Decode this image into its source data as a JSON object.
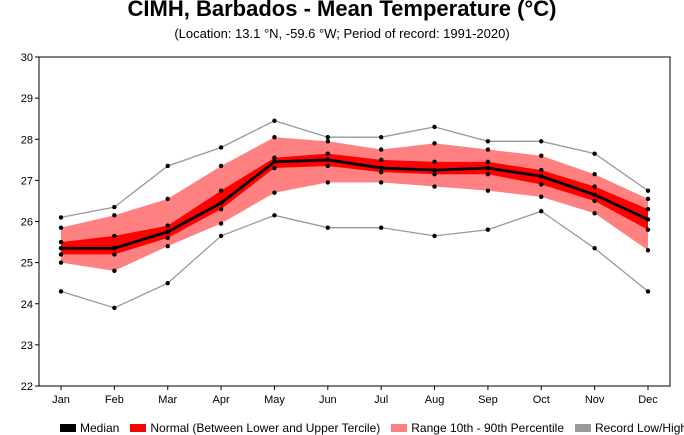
{
  "chart_data": {
    "type": "line",
    "title": "CIMH, Barbados - Mean Temperature (°C)",
    "subtitle": "(Location: 13.1 °N, -59.6 °W; Period of record: 1991-2020)",
    "categories": [
      "Jan",
      "Feb",
      "Mar",
      "Apr",
      "May",
      "Jun",
      "Jul",
      "Aug",
      "Sep",
      "Oct",
      "Nov",
      "Dec"
    ],
    "ylim": [
      22,
      30
    ],
    "yticks": [
      22,
      23,
      24,
      25,
      26,
      27,
      28,
      29,
      30
    ],
    "series": [
      {
        "name": "Median",
        "color": "#000000",
        "values": [
          25.35,
          25.35,
          25.75,
          26.45,
          27.45,
          27.5,
          27.3,
          27.25,
          27.3,
          27.1,
          26.65,
          26.05
        ]
      },
      {
        "name": "Normal (Between Lower and Upper Tercile)",
        "color": "#ff0000",
        "lower": [
          25.2,
          25.2,
          25.6,
          26.3,
          27.3,
          27.35,
          27.2,
          27.15,
          27.15,
          26.9,
          26.5,
          25.8
        ],
        "upper": [
          25.5,
          25.65,
          25.9,
          26.75,
          27.55,
          27.65,
          27.5,
          27.45,
          27.45,
          27.25,
          26.85,
          26.3
        ]
      },
      {
        "name": "Range 10th - 90th Percentile",
        "color": "#ff8080",
        "lower": [
          25.0,
          24.8,
          25.4,
          25.95,
          26.7,
          26.95,
          26.95,
          26.85,
          26.75,
          26.6,
          26.2,
          25.3
        ],
        "upper": [
          25.85,
          26.15,
          26.55,
          27.35,
          28.05,
          27.95,
          27.75,
          27.9,
          27.75,
          27.6,
          27.15,
          26.55
        ]
      },
      {
        "name": "Record Low/High",
        "color": "#999999",
        "lower": [
          24.3,
          23.9,
          24.5,
          25.65,
          26.15,
          25.85,
          25.85,
          25.65,
          25.8,
          26.25,
          25.35,
          24.3
        ],
        "upper": [
          26.1,
          26.35,
          27.35,
          27.8,
          28.45,
          28.05,
          28.05,
          28.3,
          27.95,
          27.95,
          27.65,
          26.75
        ]
      }
    ],
    "grid": false,
    "legend_position": "bottom"
  }
}
